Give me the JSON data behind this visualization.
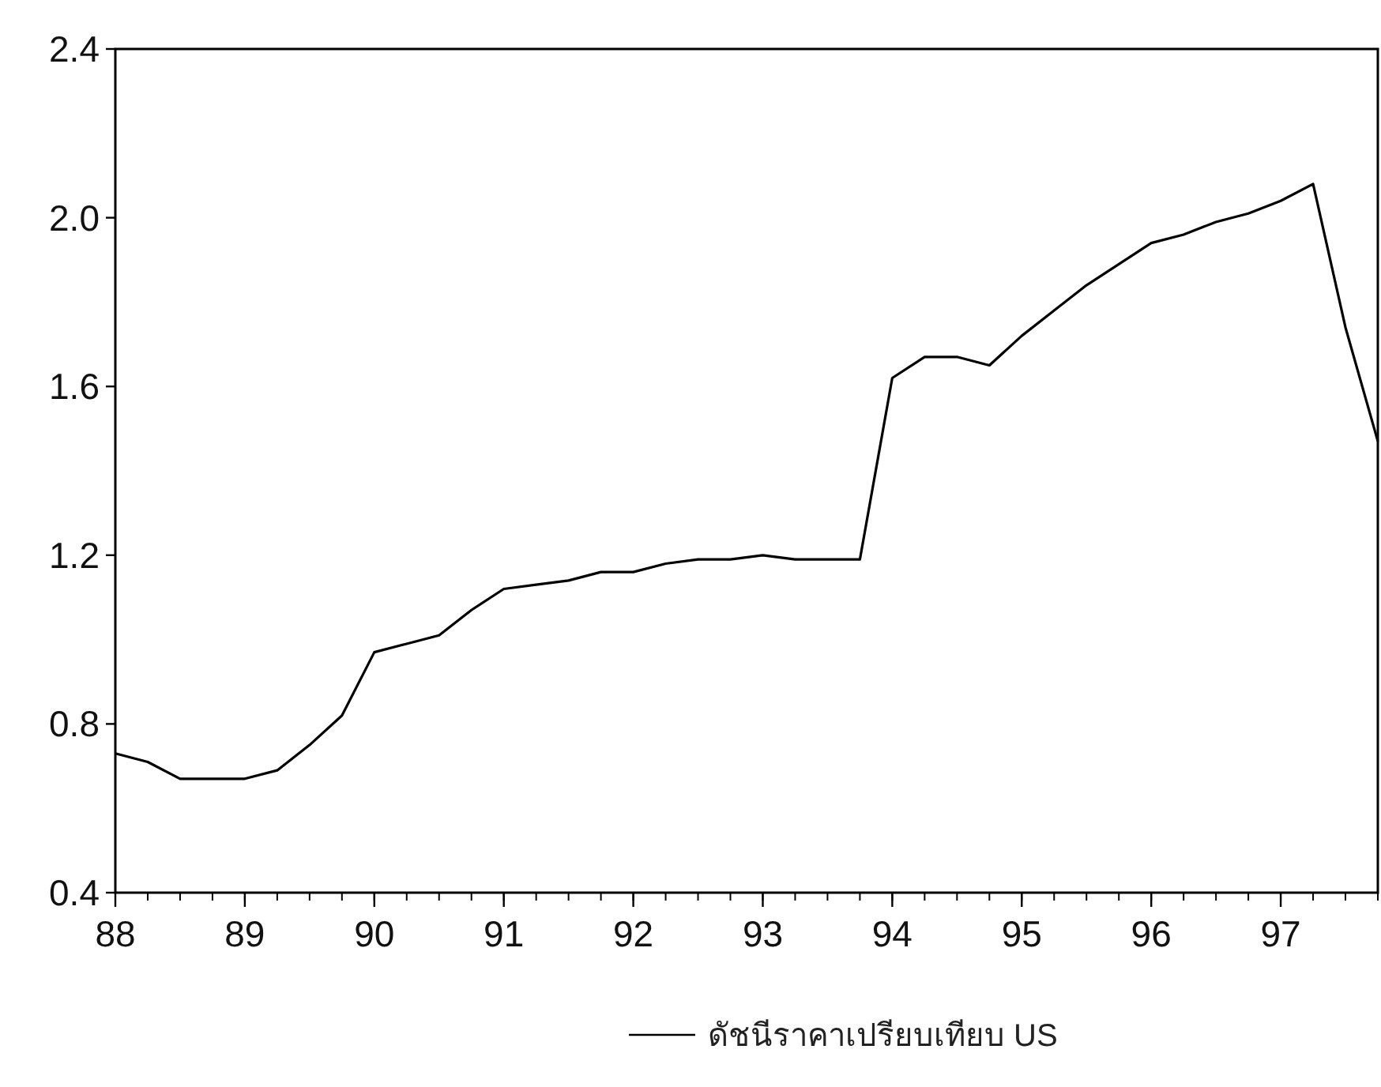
{
  "chart_data": {
    "type": "line",
    "x": [
      1988,
      1988.25,
      1988.5,
      1988.75,
      1989,
      1989.25,
      1989.5,
      1989.75,
      1990,
      1990.25,
      1990.5,
      1990.75,
      1991,
      1991.25,
      1991.5,
      1991.75,
      1992,
      1992.25,
      1992.5,
      1992.75,
      1993,
      1993.25,
      1993.5,
      1993.75,
      1994,
      1994.25,
      1994.5,
      1994.75,
      1995,
      1995.25,
      1995.5,
      1995.75,
      1996,
      1996.25,
      1996.5,
      1996.75,
      1997,
      1997.25,
      1997.5,
      1997.75
    ],
    "series": [
      {
        "name": "ดัชนีราคาเปรียบเทียบ US",
        "color": "#000000",
        "values": [
          0.73,
          0.71,
          0.67,
          0.67,
          0.67,
          0.69,
          0.75,
          0.82,
          0.97,
          0.99,
          1.01,
          1.07,
          1.12,
          1.13,
          1.14,
          1.16,
          1.16,
          1.18,
          1.19,
          1.19,
          1.2,
          1.19,
          1.19,
          1.19,
          1.62,
          1.67,
          1.67,
          1.65,
          1.72,
          1.78,
          1.84,
          1.89,
          1.94,
          1.96,
          1.99,
          2.01,
          2.04,
          2.08,
          1.74,
          1.47
        ]
      }
    ],
    "xlim": [
      1988,
      1997.75
    ],
    "xticks": [
      {
        "value": 1988,
        "label": "88"
      },
      {
        "value": 1989,
        "label": "89"
      },
      {
        "value": 1990,
        "label": "90"
      },
      {
        "value": 1991,
        "label": "91"
      },
      {
        "value": 1992,
        "label": "92"
      },
      {
        "value": 1993,
        "label": "93"
      },
      {
        "value": 1994,
        "label": "94"
      },
      {
        "value": 1995,
        "label": "95"
      },
      {
        "value": 1996,
        "label": "96"
      },
      {
        "value": 1997,
        "label": "97"
      }
    ],
    "ylim": [
      0.4,
      2.4
    ],
    "yticks": [
      {
        "value": 0.4,
        "label": "0.4"
      },
      {
        "value": 0.8,
        "label": "0.8"
      },
      {
        "value": 1.2,
        "label": "1.2"
      },
      {
        "value": 1.6,
        "label": "1.6"
      },
      {
        "value": 2.0,
        "label": "2.0"
      },
      {
        "value": 2.4,
        "label": "2.4"
      }
    ],
    "legend": "bottom"
  }
}
